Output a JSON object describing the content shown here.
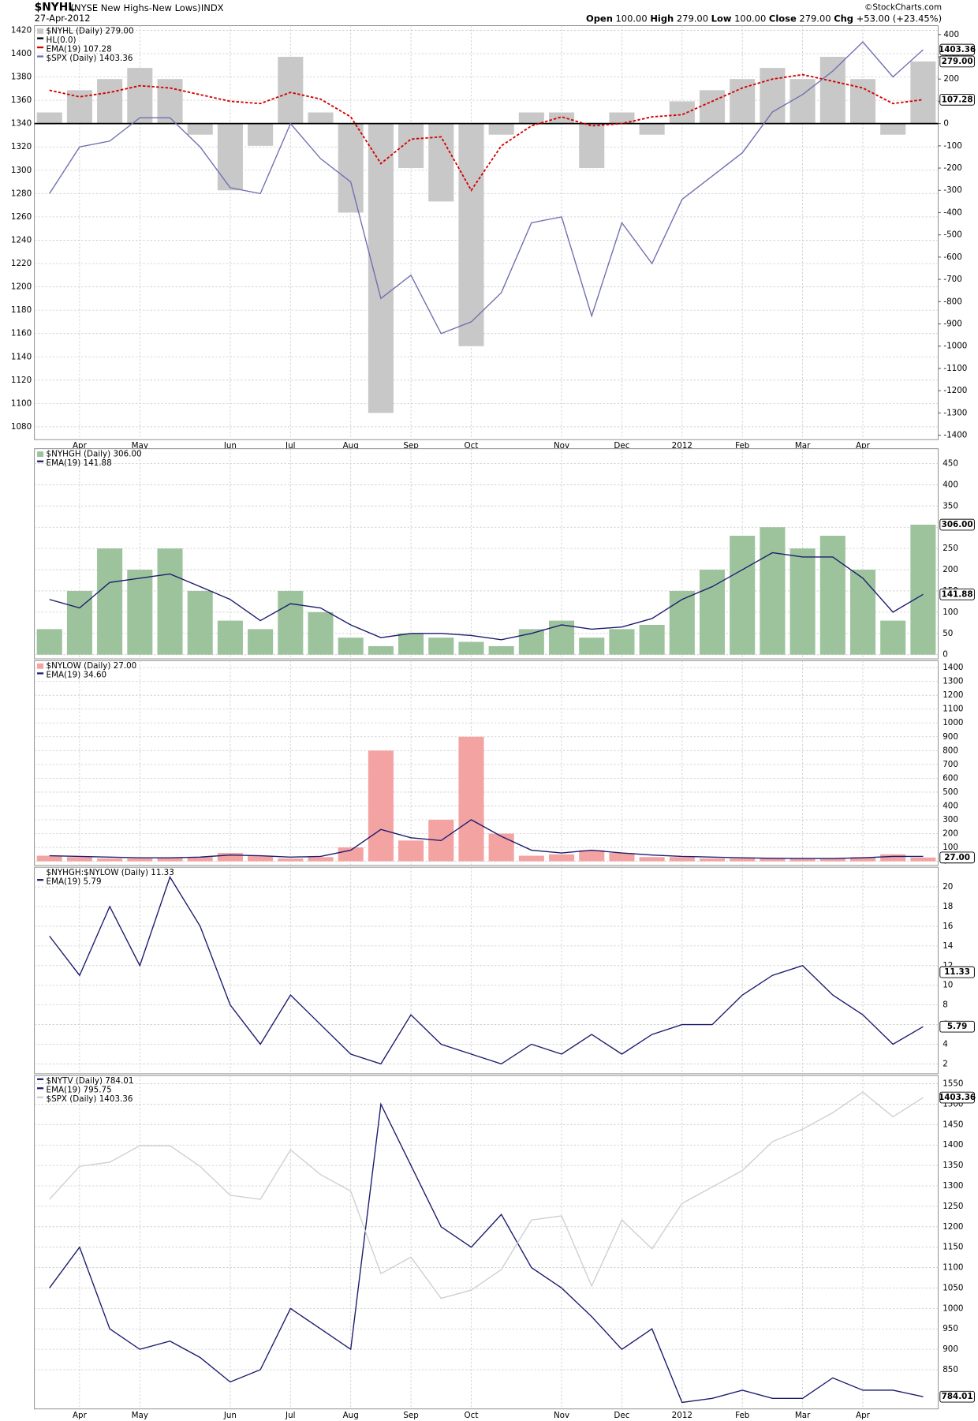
{
  "header": {
    "symbol": "$NYHL",
    "description": "(NYSE New Highs-New Lows)",
    "exchange": "INDX",
    "date": "27-Apr-2012",
    "ohlc": [
      [
        "Open",
        "100.00"
      ],
      [
        "High",
        "279.00"
      ],
      [
        "Low",
        "100.00"
      ],
      [
        "Close",
        "279.00"
      ],
      [
        "Chg",
        "+53.00 (+23.45%)"
      ]
    ],
    "source": "©StockCharts.com"
  },
  "chart_data": [
    {
      "type": "combo",
      "grid": true,
      "ylim": [
        1069,
        1424
      ],
      "yticks": [
        1080,
        1100,
        1120,
        1140,
        1160,
        1180,
        1200,
        1220,
        1240,
        1260,
        1280,
        1300,
        1320,
        1340,
        1360,
        1380,
        1400,
        1420
      ],
      "y2lim": [
        -1420,
        440
      ],
      "y2ticks": [
        -1400,
        -1300,
        -1200,
        -1100,
        -1000,
        -900,
        -800,
        -700,
        -600,
        -500,
        -400,
        -300,
        -200,
        -100,
        0,
        100,
        200,
        300,
        400
      ],
      "categories": [
        null,
        "Apr",
        null,
        "May",
        null,
        null,
        "Jun",
        null,
        "Jul",
        null,
        "Aug",
        null,
        "Sep",
        null,
        "Oct",
        null,
        null,
        "Nov",
        null,
        "Dec",
        null,
        "2012",
        null,
        "Feb",
        null,
        "Mar",
        null,
        "Apr",
        null,
        null
      ],
      "series": [
        {
          "name": "$NYHL (Daily) 279.00",
          "type": "bar",
          "axis": "y2",
          "color": "#c8c8c8",
          "values": [
            50,
            150,
            200,
            250,
            200,
            -50,
            -300,
            -100,
            300,
            50,
            -400,
            -1300,
            -200,
            -350,
            -1000,
            -50,
            50,
            50,
            -200,
            50,
            -50,
            100,
            150,
            200,
            250,
            200,
            300,
            200,
            -50,
            279
          ],
          "value_labels": [
            null,
            null,
            null,
            null,
            null,
            null,
            null,
            null,
            null,
            null,
            null,
            null,
            null,
            null,
            null,
            null,
            null,
            null,
            null,
            null,
            null,
            null,
            null,
            null,
            null,
            null,
            null,
            null,
            null,
            "279.00"
          ]
        },
        {
          "name": "HL(0.0)",
          "type": "hline",
          "axis": "y2",
          "color": "#000000",
          "value": 0
        },
        {
          "name": "EMA(19) 107.28",
          "type": "line",
          "axis": "y2",
          "color": "#d40000",
          "dash": true,
          "values": [
            150,
            120,
            140,
            170,
            160,
            130,
            100,
            90,
            140,
            110,
            30,
            -180,
            -70,
            -60,
            -300,
            -100,
            -10,
            30,
            -10,
            0,
            30,
            40,
            100,
            160,
            200,
            220,
            190,
            160,
            90,
            107.28
          ],
          "value_labels": [
            null,
            null,
            null,
            null,
            null,
            null,
            null,
            null,
            null,
            null,
            null,
            null,
            null,
            null,
            null,
            null,
            null,
            null,
            null,
            null,
            null,
            null,
            null,
            null,
            null,
            null,
            null,
            null,
            null,
            "107.28"
          ]
        },
        {
          "name": "$SPX (Daily) 1403.36",
          "type": "line",
          "axis": "y",
          "color": "#6f6fb0",
          "values": [
            1280,
            1320,
            1325,
            1345,
            1345,
            1320,
            1285,
            1280,
            1340,
            1310,
            1290,
            1190,
            1210,
            1160,
            1170,
            1195,
            1255,
            1260,
            1175,
            1255,
            1220,
            1275,
            1295,
            1315,
            1350,
            1365,
            1385,
            1410,
            1380,
            1403.36
          ],
          "value_labels": [
            null,
            null,
            null,
            null,
            null,
            null,
            null,
            null,
            null,
            null,
            null,
            null,
            null,
            null,
            null,
            null,
            null,
            null,
            null,
            null,
            null,
            null,
            null,
            null,
            null,
            null,
            null,
            null,
            null,
            "1403.36"
          ]
        }
      ]
    },
    {
      "type": "combo",
      "grid": true,
      "ylim": [
        -10,
        485
      ],
      "yticks": [
        0,
        50,
        100,
        150,
        200,
        250,
        300,
        350,
        400,
        450
      ],
      "series": [
        {
          "name": "$NYHGH (Daily) 306.00",
          "type": "bar",
          "color": "#9dc39d",
          "values": [
            60,
            150,
            250,
            200,
            250,
            150,
            80,
            60,
            150,
            100,
            40,
            20,
            50,
            40,
            30,
            20,
            60,
            80,
            40,
            60,
            70,
            150,
            200,
            280,
            300,
            250,
            280,
            200,
            80,
            306
          ],
          "value_labels": [
            null,
            null,
            null,
            null,
            null,
            null,
            null,
            null,
            null,
            null,
            null,
            null,
            null,
            null,
            null,
            null,
            null,
            null,
            null,
            null,
            null,
            null,
            null,
            null,
            null,
            null,
            null,
            null,
            null,
            "306.00"
          ]
        },
        {
          "name": "EMA(19) 141.88",
          "type": "line",
          "color": "#1c1c6e",
          "values": [
            130,
            110,
            170,
            180,
            190,
            160,
            130,
            80,
            120,
            110,
            70,
            40,
            50,
            50,
            45,
            35,
            50,
            70,
            60,
            65,
            85,
            130,
            160,
            200,
            240,
            230,
            230,
            180,
            100,
            141.88
          ],
          "value_labels": [
            null,
            null,
            null,
            null,
            null,
            null,
            null,
            null,
            null,
            null,
            null,
            null,
            null,
            null,
            null,
            null,
            null,
            null,
            null,
            null,
            null,
            null,
            null,
            null,
            null,
            null,
            null,
            null,
            null,
            "141.88"
          ]
        }
      ]
    },
    {
      "type": "combo",
      "grid": true,
      "ylim": [
        -30,
        1450
      ],
      "yticks": [
        0,
        100,
        200,
        300,
        400,
        500,
        600,
        700,
        800,
        900,
        1000,
        1100,
        1200,
        1300,
        1400
      ],
      "series": [
        {
          "name": "$NYLOW (Daily) 27.00",
          "type": "bar",
          "color": "#f4a3a3",
          "values": [
            40,
            30,
            20,
            20,
            25,
            30,
            60,
            40,
            20,
            30,
            100,
            800,
            150,
            300,
            900,
            200,
            40,
            50,
            80,
            60,
            30,
            30,
            20,
            20,
            20,
            20,
            20,
            30,
            50,
            27
          ],
          "value_labels": [
            null,
            null,
            null,
            null,
            null,
            null,
            null,
            null,
            null,
            null,
            null,
            null,
            null,
            null,
            null,
            null,
            null,
            null,
            null,
            null,
            null,
            null,
            null,
            null,
            null,
            null,
            null,
            null,
            null,
            "27.00"
          ]
        },
        {
          "name": "EMA(19) 34.60",
          "type": "line",
          "color": "#1c1c6e",
          "values": [
            40,
            35,
            30,
            25,
            25,
            30,
            45,
            40,
            30,
            35,
            80,
            230,
            170,
            150,
            300,
            180,
            80,
            60,
            80,
            60,
            45,
            35,
            30,
            25,
            22,
            20,
            20,
            25,
            35,
            34.6
          ]
        }
      ]
    },
    {
      "type": "combo",
      "grid": true,
      "ylim": [
        1,
        22
      ],
      "yticks": [
        2,
        4,
        6,
        8,
        10,
        12,
        14,
        16,
        18,
        20
      ],
      "series": [
        {
          "name": "$NYHGH:$NYLOW (Daily) 11.33",
          "type": "last_value",
          "value": 11.33,
          "value_label": "11.33"
        },
        {
          "name": "EMA(19) 5.79",
          "type": "line",
          "color": "#1c1c6e",
          "values": [
            15,
            11,
            18,
            12,
            21,
            16,
            8,
            4,
            9,
            6,
            3,
            2,
            7,
            4,
            3,
            2,
            4,
            3,
            5,
            3,
            5,
            6,
            6,
            9,
            11,
            12,
            9,
            7,
            4,
            5.79
          ],
          "value_labels": [
            null,
            null,
            null,
            null,
            null,
            null,
            null,
            null,
            null,
            null,
            null,
            null,
            null,
            null,
            null,
            null,
            null,
            null,
            null,
            null,
            null,
            null,
            null,
            null,
            null,
            null,
            null,
            null,
            null,
            "5.79"
          ]
        }
      ]
    },
    {
      "type": "combo",
      "grid": true,
      "ylim": [
        754,
        1570
      ],
      "yticks": [
        850,
        900,
        950,
        1000,
        1050,
        1100,
        1150,
        1200,
        1250,
        1300,
        1350,
        1400,
        1450,
        1500,
        1550
      ],
      "y2lim": [
        1026,
        1430
      ],
      "categories": [
        null,
        "Apr",
        null,
        "May",
        null,
        null,
        "Jun",
        null,
        "Jul",
        null,
        "Aug",
        null,
        "Sep",
        null,
        "Oct",
        null,
        null,
        "Nov",
        null,
        "Dec",
        null,
        "2012",
        null,
        "Feb",
        null,
        "Mar",
        null,
        "Apr",
        null,
        null
      ],
      "series": [
        {
          "name": "$NYTV (Daily) 784.01",
          "type": "line",
          "color": "#1c1c6e",
          "values": [
            1050,
            1150,
            950,
            900,
            920,
            880,
            820,
            850,
            1000,
            950,
            900,
            1500,
            1350,
            1200,
            1150,
            1230,
            1100,
            1050,
            980,
            900,
            950,
            770,
            780,
            800,
            780,
            780,
            830,
            800,
            800,
            784.01
          ],
          "value_labels": [
            null,
            null,
            null,
            null,
            null,
            null,
            null,
            null,
            null,
            null,
            null,
            null,
            null,
            null,
            null,
            null,
            null,
            null,
            null,
            null,
            null,
            null,
            null,
            null,
            null,
            null,
            null,
            null,
            null,
            "784.01"
          ]
        },
        {
          "name": "EMA(19) 795.75",
          "type": "legend_only",
          "color": "#1c1c6e"
        },
        {
          "name": "$SPX (Daily) 1403.36",
          "type": "line",
          "axis": "y2",
          "color": "#cfcfcf",
          "values": [
            1280,
            1320,
            1325,
            1345,
            1345,
            1320,
            1285,
            1280,
            1340,
            1310,
            1290,
            1190,
            1210,
            1160,
            1170,
            1195,
            1255,
            1260,
            1175,
            1255,
            1220,
            1275,
            1295,
            1315,
            1350,
            1365,
            1385,
            1410,
            1380,
            1403.36
          ],
          "value_labels": [
            null,
            null,
            null,
            null,
            null,
            null,
            null,
            null,
            null,
            null,
            null,
            null,
            null,
            null,
            null,
            null,
            null,
            null,
            null,
            null,
            null,
            null,
            null,
            null,
            null,
            null,
            null,
            null,
            null,
            "1403.36"
          ]
        }
      ]
    }
  ]
}
